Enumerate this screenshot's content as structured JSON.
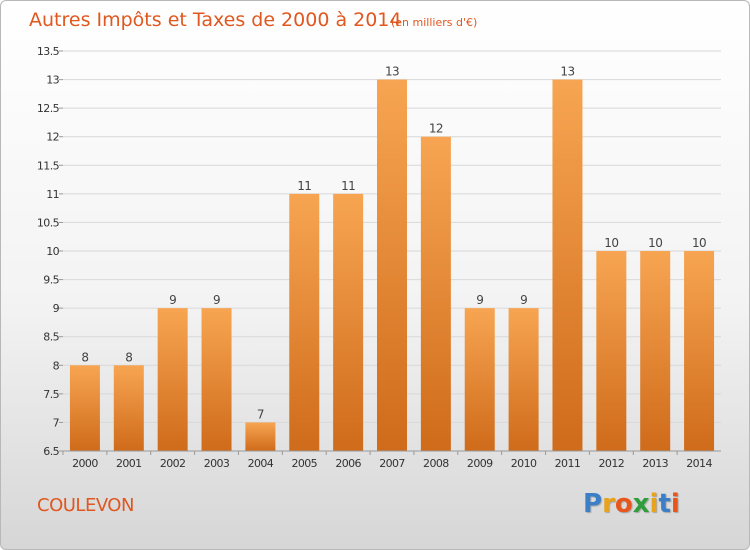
{
  "chart_data": {
    "type": "bar",
    "title": "Autres Impôts et Taxes de 2000 à 2014",
    "subtitle": "(en milliers d'€)",
    "categories": [
      "2000",
      "2001",
      "2002",
      "2003",
      "2004",
      "2005",
      "2006",
      "2007",
      "2008",
      "2009",
      "2010",
      "2011",
      "2012",
      "2013",
      "2014"
    ],
    "values": [
      8,
      8,
      9,
      9,
      7,
      11,
      11,
      13,
      12,
      9,
      9,
      13,
      10,
      10,
      10
    ],
    "data_labels": [
      "8",
      "8",
      "9",
      "9",
      "7",
      "11",
      "11",
      "13",
      "12",
      "9",
      "9",
      "13",
      "10",
      "10",
      "10"
    ],
    "ylim": [
      6.5,
      13.5
    ],
    "yticks": [
      6.5,
      7,
      7.5,
      8,
      8.5,
      9,
      9.5,
      10,
      10.5,
      11,
      11.5,
      12,
      12.5,
      13,
      13.5
    ],
    "ytick_labels": [
      "6.5",
      "7",
      "7.5",
      "8",
      "8.5",
      "9",
      "9.5",
      "10",
      "10.5",
      "11",
      "11.5",
      "12",
      "12.5",
      "13",
      "13.5"
    ],
    "grid": true,
    "bar_color_top": "#f7a552",
    "bar_color_bottom": "#cf6b1a"
  },
  "place": "COULEVON",
  "logo": {
    "letters": [
      "P",
      "r",
      "o",
      "x",
      "i",
      "t",
      "i"
    ],
    "colors": [
      "#3a7fc8",
      "#e8a21c",
      "#e8561c",
      "#2f9e3a",
      "#e8a21c",
      "#3a7fc8",
      "#e8561c"
    ]
  },
  "accent_color": "#e0571f"
}
